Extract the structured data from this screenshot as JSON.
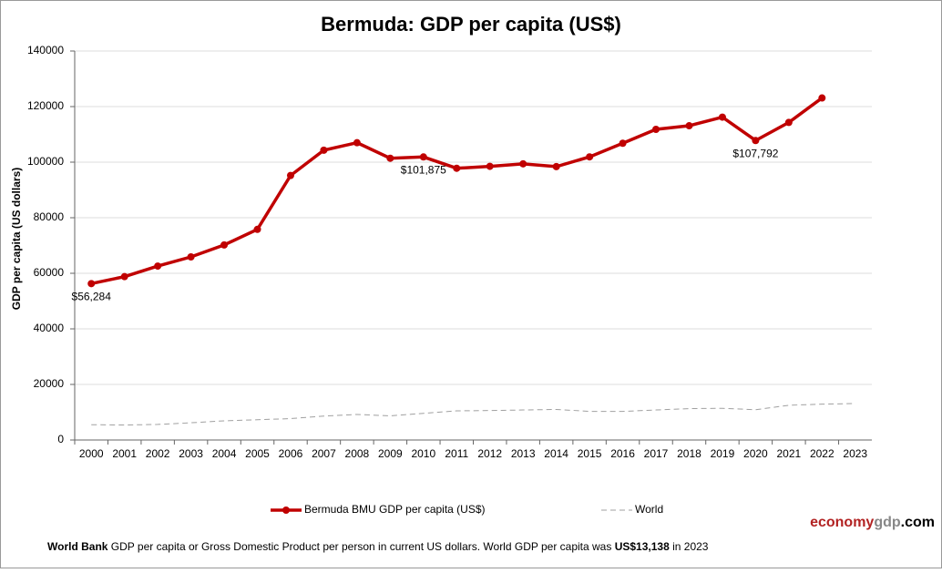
{
  "chart_data": {
    "type": "line",
    "title": "Bermuda: GDP per capita (US$)",
    "y_label": "GDP per capita (US dollars)",
    "categories": [
      "2000",
      "2001",
      "2002",
      "2003",
      "2004",
      "2005",
      "2006",
      "2007",
      "2008",
      "2009",
      "2010",
      "2011",
      "2012",
      "2013",
      "2014",
      "2015",
      "2016",
      "2017",
      "2018",
      "2019",
      "2020",
      "2021",
      "2022",
      "2023"
    ],
    "series": [
      {
        "name": "Bermuda BMU GDP per capita (US$)",
        "color": "#c00000",
        "values": [
          56284,
          58800,
          62600,
          65900,
          70200,
          75800,
          95200,
          104300,
          107000,
          101400,
          101875,
          97800,
          98500,
          99400,
          98400,
          101900,
          106800,
          111800,
          113100,
          116200,
          107792,
          114300,
          123100,
          null
        ],
        "value_labels": [
          "$56,284",
          null,
          null,
          null,
          null,
          null,
          null,
          null,
          null,
          null,
          "$101,875",
          null,
          null,
          null,
          null,
          null,
          null,
          null,
          null,
          null,
          "$107,792",
          null,
          null,
          null
        ]
      },
      {
        "name": "World",
        "color": "#a0a0a0",
        "values": [
          5500,
          5400,
          5600,
          6200,
          6900,
          7300,
          7700,
          8600,
          9200,
          8700,
          9600,
          10500,
          10600,
          10800,
          11000,
          10300,
          10300,
          10800,
          11300,
          11400,
          10900,
          12500,
          12900,
          13138
        ]
      }
    ],
    "ylim": [
      0,
      140000
    ],
    "yticks": [
      0,
      20000,
      40000,
      60000,
      80000,
      100000,
      120000,
      140000
    ],
    "grid": true,
    "legend": "bottom",
    "source": [
      "World Bank",
      "GDP per capita or Gross Domestic Product per person in current US dollars.   World GDP per capita was",
      "US$13,138",
      "in 2023"
    ],
    "brand": [
      "economy",
      "gdp",
      ".com"
    ]
  }
}
